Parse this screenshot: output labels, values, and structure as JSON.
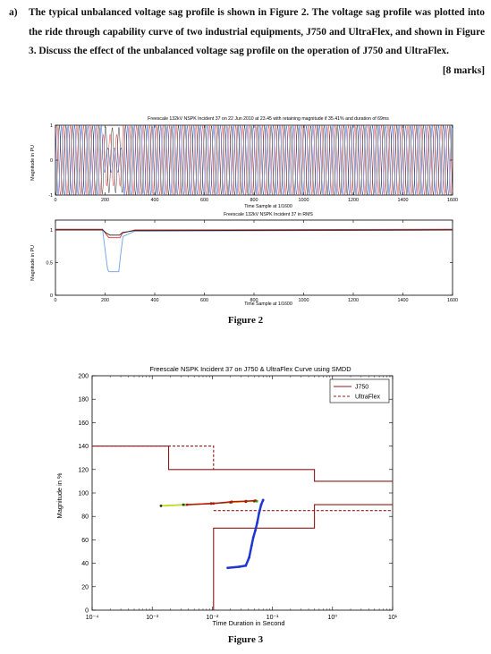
{
  "question": {
    "label": "a)",
    "text": "The typical unbalanced voltage sag profile is shown in Figure 2. The voltage sag profile was plotted into the ride through capability curve of two industrial equipments, J750 and UltraFlex, and shown in Figure 3. Discuss the effect of the unbalanced voltage sag profile on the operation of J750 and UltraFlex.",
    "marks": "[8 marks]"
  },
  "figure2": {
    "caption": "Figure 2",
    "top_title": "Freescale 132kV NSPK Incident 37 on 22 Jun 2010 at 23.45 with retaining magnitude if 35.41% and duration of 69ms",
    "top_ylabel": "Magnitude in PU",
    "top_xlabel": "Time Sample at 1/1600",
    "bottom_title": "Freescale 132kV NSPK Incident 37 in RMS",
    "bottom_ylabel": "Magnitude in PU",
    "bottom_xlabel": "Time Sample at 1/1600"
  },
  "figure3": {
    "caption": "Figure 3",
    "title": "Freescale NSPK Incident 37 on J750 & UltraFlex Curve using SMDD",
    "xlabel": "Time Duration in Second",
    "ylabel": "Magnitude in %",
    "legend_j750": "J750",
    "legend_ultraflex": "UltraFlex"
  },
  "chart_data": [
    {
      "type": "line",
      "title": "Freescale 132kV NSPK Incident 37 on 22 Jun 2010 at 23.45 with retaining magnitude if 35.41% and duration of 69ms",
      "xlabel": "Time Sample at 1/1600",
      "ylabel": "Magnitude in PU",
      "xlim": [
        0,
        1600
      ],
      "ylim": [
        -1,
        1
      ],
      "x_ticks": [
        0,
        200,
        400,
        600,
        800,
        1000,
        1200,
        1400,
        1600
      ],
      "x_tick_labels": [
        "0",
        "200",
        "400",
        "600",
        "800",
        "1000",
        "1200",
        "1400",
        "1600"
      ],
      "y_ticks": [
        -1,
        0,
        1
      ],
      "y_tick_labels": [
        "-1",
        "0",
        "1"
      ],
      "grid": false,
      "series_colors": [
        "#e03030",
        "#1a4bd6",
        "#222222"
      ],
      "cycles": 60,
      "sag_start": 190,
      "sag_end": 270,
      "sag_amplitudes": [
        0.75,
        0.36,
        0.95
      ]
    },
    {
      "type": "line",
      "title": "Freescale 132kV NSPK Incident 37 in RMS",
      "xlabel": "Time Sample at 1/1600",
      "ylabel": "Magnitude in PU",
      "xlim": [
        0,
        1600
      ],
      "ylim": [
        0,
        1.15
      ],
      "x_ticks": [
        0,
        200,
        400,
        600,
        800,
        1000,
        1200,
        1400,
        1600
      ],
      "x_tick_labels": [
        "0",
        "200",
        "400",
        "600",
        "800",
        "1000",
        "1200",
        "1400",
        "1600"
      ],
      "y_ticks": [
        0,
        0.5,
        1
      ],
      "y_tick_labels": [
        "0",
        "0.5",
        "1"
      ],
      "grid": false,
      "series": [
        {
          "color": "#e03030",
          "points": [
            [
              0,
              1.01
            ],
            [
              190,
              1.01
            ],
            [
              205,
              0.93
            ],
            [
              215,
              0.88
            ],
            [
              260,
              0.88
            ],
            [
              270,
              0.95
            ],
            [
              320,
              1.0
            ],
            [
              1600,
              1.01
            ]
          ]
        },
        {
          "color": "#6ea0e0",
          "points": [
            [
              0,
              1.0
            ],
            [
              190,
              1.0
            ],
            [
              200,
              0.7
            ],
            [
              210,
              0.4
            ],
            [
              215,
              0.36
            ],
            [
              255,
              0.36
            ],
            [
              262,
              0.6
            ],
            [
              272,
              0.9
            ],
            [
              320,
              0.98
            ],
            [
              1600,
              1.0
            ]
          ]
        },
        {
          "color": "#222222",
          "points": [
            [
              0,
              1.0
            ],
            [
              190,
              1.0
            ],
            [
              205,
              0.95
            ],
            [
              220,
              0.92
            ],
            [
              258,
              0.92
            ],
            [
              270,
              0.96
            ],
            [
              320,
              0.99
            ],
            [
              1600,
              1.0
            ]
          ]
        }
      ]
    },
    {
      "type": "line",
      "title": "Freescale NSPK Incident 37 on J750 & UltraFlex Curve using SMDD",
      "xlabel": "Time Duration in Second",
      "ylabel": "Magnitude in %",
      "x_scale": "log",
      "xlim": [
        0.0001,
        10
      ],
      "ylim": [
        0,
        200
      ],
      "x_ticks": [
        0.0001,
        0.001,
        0.01,
        0.1,
        1,
        10
      ],
      "x_tick_labels": [
        "10⁻⁴",
        "10⁻³",
        "10⁻²",
        "10⁻¹",
        "10⁰",
        "10¹"
      ],
      "y_ticks": [
        0,
        20,
        40,
        60,
        80,
        100,
        120,
        140,
        160,
        180,
        200
      ],
      "y_tick_labels": [
        "0",
        "20",
        "40",
        "60",
        "80",
        "100",
        "120",
        "140",
        "160",
        "180",
        "200"
      ],
      "grid": false,
      "legend_position": "top-right",
      "series": [
        {
          "name": "J750",
          "color": "#8b1a1a",
          "dash": "",
          "points": [
            [
              0.0001,
              140
            ],
            [
              0.00187,
              140
            ],
            [
              0.00187,
              120
            ],
            [
              0.5,
              120
            ],
            [
              0.5,
              110
            ],
            [
              10,
              110
            ]
          ]
        },
        {
          "name": "J750",
          "color": "#8b1a1a",
          "dash": "",
          "points": [
            [
              0.0105,
              0
            ],
            [
              0.0105,
              70
            ],
            [
              0.5,
              70
            ],
            [
              0.5,
              90
            ],
            [
              10,
              90
            ]
          ]
        },
        {
          "name": "UltraFlex",
          "color": "#8b1a1a",
          "dash": "3,2",
          "points": [
            [
              0.0001,
              140
            ],
            [
              0.0105,
              140
            ],
            [
              0.0105,
              120
            ]
          ]
        },
        {
          "name": "UltraFlex",
          "color": "#8b1a1a",
          "dash": "3,2",
          "points": [
            [
              0.0105,
              85
            ],
            [
              10,
              85
            ]
          ]
        },
        {
          "color": "#00cc00",
          "dash": "",
          "width": 1.5,
          "marker": "dot",
          "points": [
            [
              0.0014,
              89
            ],
            [
              0.0035,
              90
            ],
            [
              0.0098,
              91
            ],
            [
              0.021,
              92
            ],
            [
              0.037,
              93
            ],
            [
              0.055,
              93
            ]
          ]
        },
        {
          "color": "#e8d800",
          "dash": "",
          "width": 1.2,
          "marker": "dot",
          "points": [
            [
              0.0014,
              89
            ],
            [
              0.0033,
              90
            ],
            [
              0.0095,
              91
            ],
            [
              0.02,
              92
            ],
            [
              0.036,
              92.5
            ],
            [
              0.05,
              93
            ]
          ]
        },
        {
          "color": "#c01010",
          "dash": "",
          "width": 1.5,
          "marker": "dot",
          "points": [
            [
              0.0038,
              90
            ],
            [
              0.0105,
              91
            ],
            [
              0.021,
              92.5
            ],
            [
              0.036,
              93
            ],
            [
              0.052,
              93.5
            ]
          ]
        },
        {
          "color": "#2036d0",
          "dash": "",
          "width": 2.5,
          "marker": "dot",
          "points": [
            [
              0.018,
              36
            ],
            [
              0.028,
              37
            ],
            [
              0.036,
              38
            ],
            [
              0.041,
              45
            ],
            [
              0.045,
              55
            ],
            [
              0.048,
              62
            ],
            [
              0.052,
              68
            ],
            [
              0.056,
              75
            ],
            [
              0.06,
              83
            ],
            [
              0.065,
              90
            ],
            [
              0.07,
              94
            ]
          ]
        }
      ]
    }
  ]
}
